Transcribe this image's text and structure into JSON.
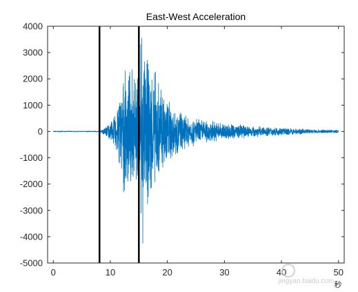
{
  "chart_data": {
    "type": "line",
    "title": "East-West Acceleration",
    "xlabel": "",
    "ylabel": "",
    "x_unit_label": "秒",
    "xlim": [
      -1,
      51
    ],
    "ylim": [
      -5000,
      4000
    ],
    "xticks": [
      0,
      10,
      20,
      30,
      40,
      50
    ],
    "yticks": [
      -5000,
      -4000,
      -3000,
      -2000,
      -1000,
      0,
      1000,
      2000,
      3000,
      4000
    ],
    "grid": false,
    "box": true,
    "line_color": "#0072BD",
    "marker_lines": {
      "x": [
        8.1,
        15.0
      ],
      "color": "#000000"
    },
    "series": [
      {
        "envelope_points": [
          [
            0,
            20
          ],
          [
            8.0,
            20
          ],
          [
            8.5,
            60
          ],
          [
            9.5,
            280
          ],
          [
            10.5,
            500
          ],
          [
            11.0,
            900
          ],
          [
            11.5,
            1500
          ],
          [
            12.0,
            2000
          ],
          [
            12.5,
            2300
          ],
          [
            13.5,
            2400
          ],
          [
            14.5,
            2100
          ],
          [
            15.2,
            2600
          ],
          [
            15.8,
            3400
          ],
          [
            16.5,
            3000
          ],
          [
            18.0,
            2400
          ],
          [
            19.5,
            1700
          ],
          [
            21.0,
            1100
          ],
          [
            23.0,
            700
          ],
          [
            26.0,
            500
          ],
          [
            30.0,
            350
          ],
          [
            35.0,
            230
          ],
          [
            40.0,
            150
          ],
          [
            45.0,
            90
          ],
          [
            50.0,
            60
          ]
        ],
        "peaks": [
          {
            "x": 15.5,
            "y": 3550
          },
          {
            "x": 15.3,
            "y": 3300
          },
          {
            "x": 15.7,
            "y": -4250
          },
          {
            "x": 15.4,
            "y": -3100
          },
          {
            "x": 13.8,
            "y": 2350
          },
          {
            "x": 12.3,
            "y": -2300
          }
        ]
      }
    ]
  },
  "watermark": "jingyan.baidu.com"
}
